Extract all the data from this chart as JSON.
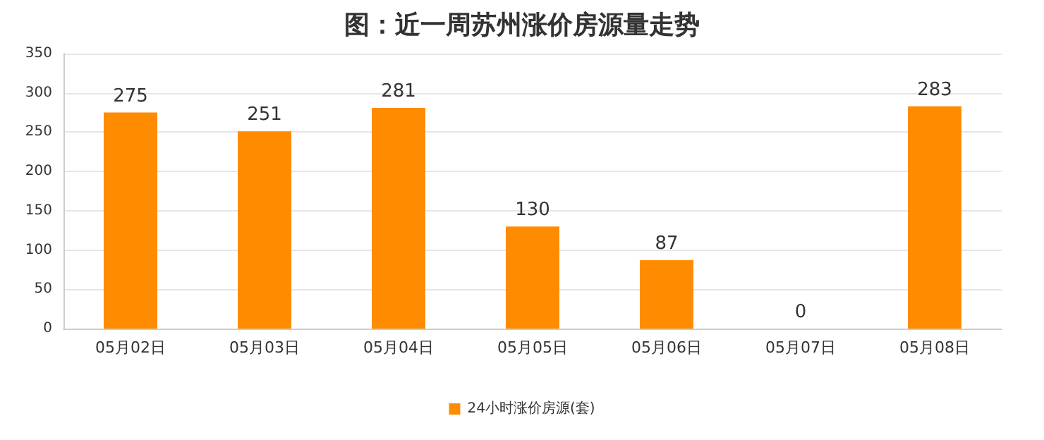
{
  "chart_data": {
    "type": "bar",
    "title": "图：近一周苏州涨价房源量走势",
    "categories": [
      "05月02日",
      "05月03日",
      "05月04日",
      "05月05日",
      "05月06日",
      "05月07日",
      "05月08日"
    ],
    "series": [
      {
        "name": "24小时涨价房源(套)",
        "color": "#ff8c00",
        "values": [
          275,
          251,
          281,
          130,
          87,
          0,
          283
        ]
      }
    ],
    "ylim": [
      0,
      350
    ],
    "yticks": [
      0,
      50,
      100,
      150,
      200,
      250,
      300,
      350
    ],
    "grid": "y",
    "legend": "bottom",
    "data_labels": true
  }
}
